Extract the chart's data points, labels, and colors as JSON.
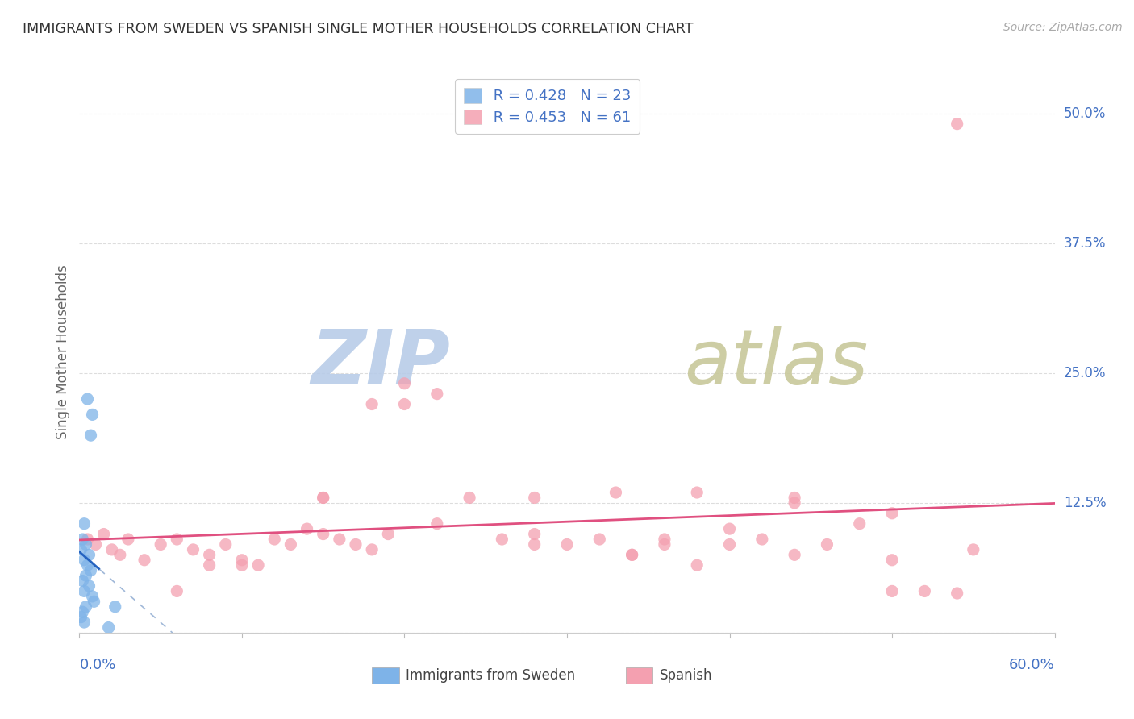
{
  "title": "IMMIGRANTS FROM SWEDEN VS SPANISH SINGLE MOTHER HOUSEHOLDS CORRELATION CHART",
  "source": "Source: ZipAtlas.com",
  "ylabel": "Single Mother Households",
  "ytick_labels": [
    "0.0%",
    "12.5%",
    "25.0%",
    "37.5%",
    "50.0%"
  ],
  "ytick_values": [
    0.0,
    0.125,
    0.25,
    0.375,
    0.5
  ],
  "xlim": [
    0.0,
    0.6
  ],
  "ylim": [
    0.0,
    0.54
  ],
  "legend_r_sweden": "R = 0.428",
  "legend_n_sweden": "N = 23",
  "legend_r_spanish": "R = 0.453",
  "legend_n_spanish": "N = 61",
  "legend_label_sweden": "Immigrants from Sweden",
  "legend_label_spanish": "Spanish",
  "sweden_color": "#7EB3E8",
  "spanish_color": "#F4A0B0",
  "sweden_line_color": "#2563C0",
  "spanish_line_color": "#E05080",
  "dashed_line_color": "#A0B8D8",
  "watermark_zip": "ZIP",
  "watermark_atlas": "atlas",
  "watermark_color_zip": "#B8C8E8",
  "watermark_color_atlas": "#C8D0A0",
  "grid_color": "#DDDDDD",
  "background_color": "#FFFFFF",
  "title_color": "#333333",
  "source_color": "#AAAAAA",
  "label_color": "#4472C4",
  "ylabel_color": "#666666",
  "sweden_points_x": [
    0.005,
    0.008,
    0.007,
    0.003,
    0.006,
    0.002,
    0.004,
    0.001,
    0.003,
    0.005,
    0.007,
    0.004,
    0.002,
    0.006,
    0.003,
    0.008,
    0.009,
    0.004,
    0.002,
    0.001,
    0.003,
    0.022,
    0.018
  ],
  "sweden_points_y": [
    0.225,
    0.21,
    0.19,
    0.105,
    0.075,
    0.09,
    0.085,
    0.08,
    0.07,
    0.065,
    0.06,
    0.055,
    0.05,
    0.045,
    0.04,
    0.035,
    0.03,
    0.025,
    0.02,
    0.015,
    0.01,
    0.025,
    0.005
  ],
  "spanish_points_x": [
    0.005,
    0.01,
    0.015,
    0.02,
    0.025,
    0.03,
    0.04,
    0.05,
    0.06,
    0.07,
    0.08,
    0.09,
    0.1,
    0.11,
    0.12,
    0.13,
    0.14,
    0.15,
    0.16,
    0.17,
    0.18,
    0.19,
    0.2,
    0.22,
    0.24,
    0.26,
    0.28,
    0.3,
    0.32,
    0.34,
    0.36,
    0.38,
    0.4,
    0.42,
    0.44,
    0.46,
    0.48,
    0.5,
    0.52,
    0.54,
    0.38,
    0.15,
    0.18,
    0.22,
    0.28,
    0.44,
    0.5,
    0.33,
    0.34,
    0.44,
    0.5,
    0.55,
    0.4,
    0.36,
    0.28,
    0.2,
    0.15,
    0.1,
    0.08,
    0.06,
    0.54
  ],
  "spanish_points_y": [
    0.09,
    0.085,
    0.095,
    0.08,
    0.075,
    0.09,
    0.07,
    0.085,
    0.09,
    0.08,
    0.075,
    0.085,
    0.07,
    0.065,
    0.09,
    0.085,
    0.1,
    0.095,
    0.09,
    0.085,
    0.08,
    0.095,
    0.24,
    0.105,
    0.13,
    0.09,
    0.095,
    0.085,
    0.09,
    0.075,
    0.085,
    0.065,
    0.1,
    0.09,
    0.075,
    0.085,
    0.105,
    0.07,
    0.04,
    0.038,
    0.135,
    0.13,
    0.22,
    0.23,
    0.13,
    0.125,
    0.115,
    0.135,
    0.075,
    0.13,
    0.04,
    0.08,
    0.085,
    0.09,
    0.085,
    0.22,
    0.13,
    0.065,
    0.065,
    0.04,
    0.49
  ]
}
